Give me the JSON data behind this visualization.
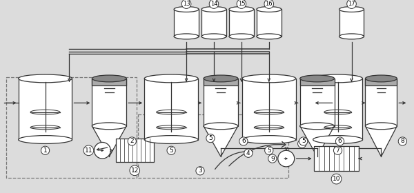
{
  "bg_color": "#dcdcdc",
  "line_color": "#333333",
  "fig_width": 6.0,
  "fig_height": 2.8,
  "dpi": 100
}
